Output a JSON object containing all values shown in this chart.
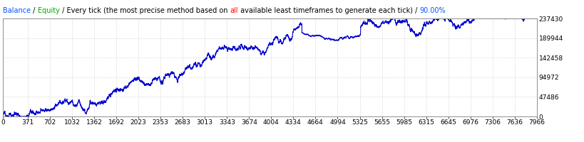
{
  "title_parts": [
    {
      "text": "Balance",
      "color": "#0055FF"
    },
    {
      "text": " / ",
      "color": "#000000"
    },
    {
      "text": "Equity",
      "color": "#00AA00"
    },
    {
      "text": " / Every tick (the most precise method based on ",
      "color": "#000000"
    },
    {
      "text": "all",
      "color": "#FF0000"
    },
    {
      "text": " available least timeframes to generate each tick) / ",
      "color": "#000000"
    },
    {
      "text": "90.00%",
      "color": "#0055FF"
    }
  ],
  "x_ticks": [
    0,
    371,
    702,
    1032,
    1362,
    1692,
    2023,
    2353,
    2683,
    3013,
    3343,
    3674,
    4004,
    4334,
    4664,
    4994,
    5325,
    5655,
    5985,
    6315,
    6645,
    6976,
    7306,
    7636,
    7966
  ],
  "y_ticks_right": [
    0,
    47486,
    94972,
    142458,
    189944,
    237430
  ],
  "x_max": 7966,
  "y_max": 237430,
  "y_min": 0,
  "line_color": "#0000CC",
  "line_width": 0.8,
  "bg_color": "#FFFFFF",
  "grid_color": "#C0C0C0",
  "grid_style": ":",
  "title_fontsize": 7.0,
  "tick_fontsize": 6.5,
  "seed": 12345
}
